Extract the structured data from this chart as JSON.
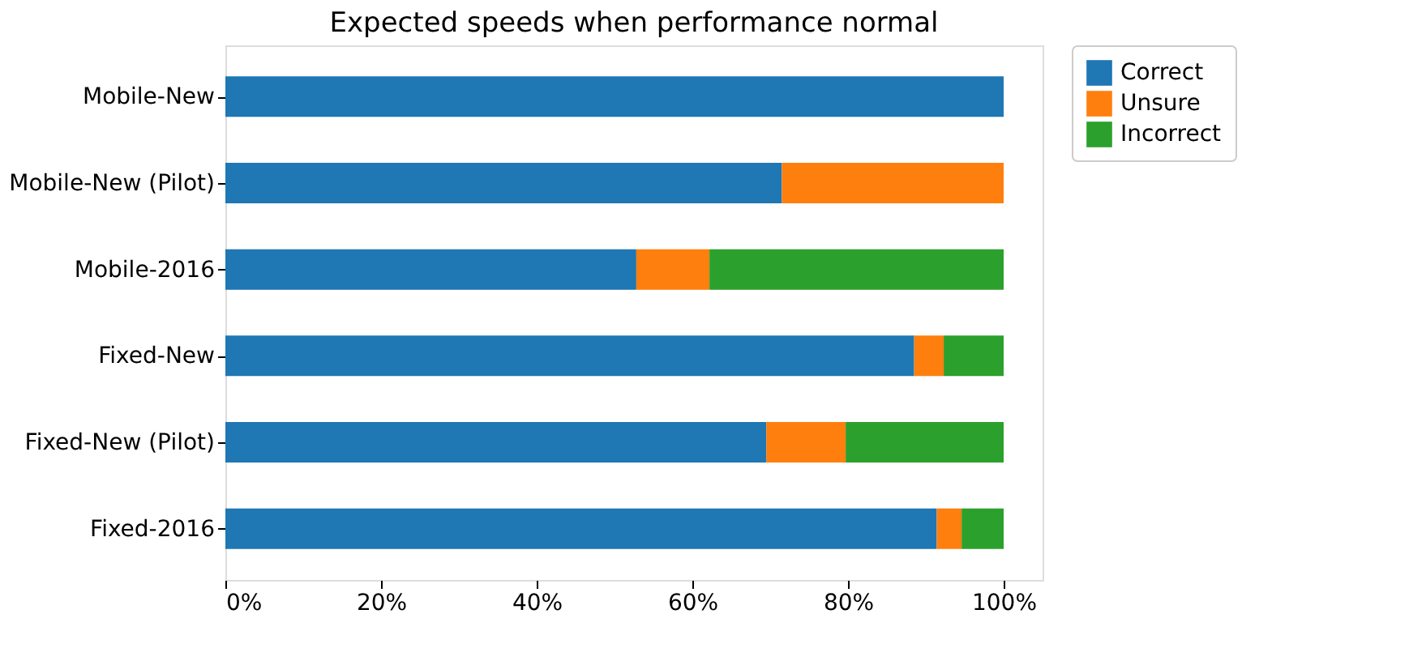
{
  "chart_data": {
    "type": "bar",
    "title": "Expected speeds when performance normal",
    "orientation": "horizontal",
    "stacked": true,
    "categories": [
      "Mobile-New",
      "Mobile-New (Pilot)",
      "Mobile-2016",
      "Fixed-New",
      "Fixed-New (Pilot)",
      "Fixed-2016"
    ],
    "series": [
      {
        "name": "Correct",
        "color": "#1f77b4",
        "values": [
          100,
          71.5,
          52.8,
          88.5,
          69.5,
          91.4
        ]
      },
      {
        "name": "Unsure",
        "color": "#ff7f0e",
        "values": [
          0,
          28.5,
          9.4,
          3.8,
          10.2,
          3.2
        ]
      },
      {
        "name": "Incorrect",
        "color": "#2ca02c",
        "values": [
          0,
          0,
          37.8,
          7.7,
          20.3,
          5.4
        ]
      }
    ],
    "xlim": [
      0,
      105
    ],
    "xticks": [
      {
        "value": 0,
        "label": "0%"
      },
      {
        "value": 20,
        "label": "20%"
      },
      {
        "value": 40,
        "label": "40%"
      },
      {
        "value": 60,
        "label": "60%"
      },
      {
        "value": 80,
        "label": "80%"
      },
      {
        "value": 100,
        "label": "100%"
      }
    ],
    "grid": false,
    "legend": "right"
  }
}
